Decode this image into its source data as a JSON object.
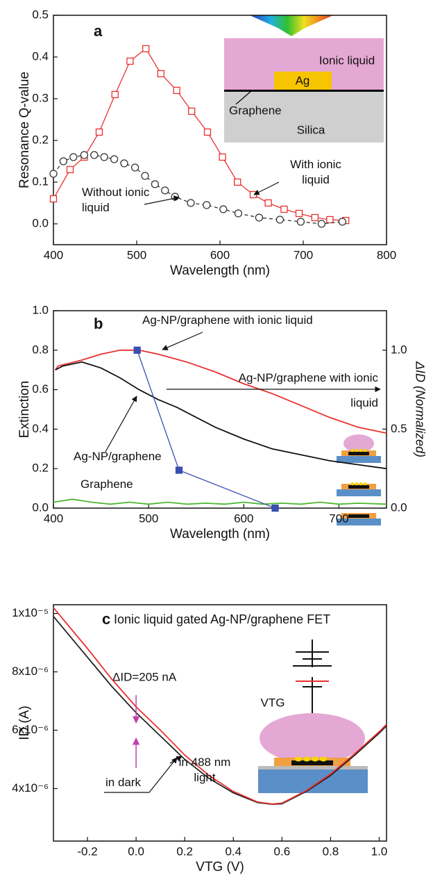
{
  "chart_data": [
    {
      "type": "line",
      "panel_label": "a",
      "xlabel": "Wavelength (nm)",
      "ylabel": "Resonance Q-value",
      "xlim": [
        400,
        800
      ],
      "ylim": [
        -0.05,
        0.5
      ],
      "xticks": [
        400,
        500,
        600,
        700,
        800
      ],
      "yticks": [
        {
          "value": 0,
          "label": "0.0"
        },
        0.1,
        0.2,
        0.3,
        0.4,
        0.5
      ],
      "inset_labels": [
        "Ionic liquid",
        "Ag",
        "Graphene",
        "Silica"
      ],
      "series": [
        {
          "name": "With ionic liquid",
          "color": "#e8312f",
          "marker": "square",
          "linestyle": "solid",
          "x": [
            400,
            420,
            437,
            455,
            474,
            492,
            511,
            529,
            548,
            566,
            585,
            603,
            621,
            640,
            658,
            677,
            695,
            714,
            732,
            751
          ],
          "values": [
            0.06,
            0.13,
            0.16,
            0.22,
            0.31,
            0.39,
            0.42,
            0.36,
            0.32,
            0.27,
            0.22,
            0.16,
            0.1,
            0.07,
            0.05,
            0.035,
            0.025,
            0.015,
            0.01,
            0.008
          ]
        },
        {
          "name": "Without ionic liquid",
          "color": "#333333",
          "marker": "circle",
          "linestyle": "dashed",
          "x": [
            400,
            412,
            424,
            437,
            449,
            461,
            473,
            485,
            498,
            510,
            522,
            534,
            546,
            565,
            584,
            604,
            622,
            647,
            672,
            697,
            722,
            747
          ],
          "values": [
            0.12,
            0.15,
            0.16,
            0.165,
            0.165,
            0.16,
            0.155,
            0.145,
            0.135,
            0.115,
            0.095,
            0.08,
            0.065,
            0.05,
            0.045,
            0.035,
            0.025,
            0.015,
            0.01,
            0.005,
            0.0,
            0.005
          ]
        }
      ]
    },
    {
      "type": "line",
      "panel_label": "b",
      "xlabel": "Wavelength (nm)",
      "ylabel": "Extinction",
      "y2label": "ΔID (Normalized)",
      "xlim": [
        400,
        750
      ],
      "ylim": [
        0,
        1
      ],
      "y2lim": [
        0,
        1.25
      ],
      "xticks": [
        400,
        500,
        600,
        700
      ],
      "yticks": [
        {
          "value": 0,
          "label": "0.0"
        },
        0.2,
        0.4,
        0.6,
        0.8,
        {
          "value": 1,
          "label": "1.0"
        }
      ],
      "y2ticks": [
        {
          "value": 0,
          "label": "0.0"
        },
        0.5,
        {
          "value": 1,
          "label": "1.0"
        }
      ],
      "series": [
        {
          "name": "Ag-NP/graphene with ionic liquid",
          "color": "#e8312f",
          "linestyle": "solid",
          "x": [
            402,
            405,
            430,
            450,
            470,
            490,
            510,
            540,
            570,
            600,
            630,
            660,
            690,
            720,
            750
          ],
          "values": [
            0.7,
            0.72,
            0.75,
            0.78,
            0.8,
            0.8,
            0.78,
            0.74,
            0.69,
            0.63,
            0.58,
            0.52,
            0.46,
            0.41,
            0.38
          ]
        },
        {
          "name": "Ag-NP/graphene",
          "color": "#111111",
          "linestyle": "solid",
          "x": [
            402,
            410,
            430,
            450,
            470,
            490,
            510,
            530,
            550,
            570,
            600,
            630,
            660,
            690,
            720,
            750
          ],
          "values": [
            0.7,
            0.72,
            0.74,
            0.71,
            0.66,
            0.6,
            0.55,
            0.51,
            0.46,
            0.41,
            0.35,
            0.3,
            0.27,
            0.24,
            0.22,
            0.2
          ]
        },
        {
          "name": "Graphene",
          "color": "#4cb82f",
          "linestyle": "solid",
          "x": [
            400,
            420,
            440,
            460,
            480,
            500,
            520,
            540,
            560,
            580,
            600,
            620,
            640,
            660,
            680,
            700,
            720,
            750
          ],
          "values": [
            0.03,
            0.045,
            0.03,
            0.02,
            0.03,
            0.02,
            0.03,
            0.02,
            0.025,
            0.02,
            0.03,
            0.02,
            0.025,
            0.02,
            0.03,
            0.02,
            0.025,
            0.02
          ]
        },
        {
          "name": "Ag-NP/graphene with ionic liquid",
          "color": "#3a4fb0",
          "marker": "square-filled",
          "linestyle": "solid",
          "axis": "y2",
          "x": [
            488,
            532,
            633
          ],
          "values": [
            1.0,
            0.24,
            0.0
          ]
        }
      ]
    },
    {
      "type": "line",
      "panel_label": "c",
      "title": "Ionic liquid gated Ag-NP/graphene FET",
      "xlabel": "VTG (V)",
      "ylabel": "ID (A)",
      "xlim": [
        -0.34,
        1.03
      ],
      "ylim": [
        2.2e-06,
        1.03e-05
      ],
      "xticks": [
        -0.2,
        {
          "value": 0,
          "label": "0.0"
        },
        0.2,
        0.4,
        0.6,
        0.8,
        {
          "value": 1,
          "label": "1.0"
        }
      ],
      "yticks": [
        {
          "value": 4e-06,
          "label": "4x10⁻⁶"
        },
        {
          "value": 6e-06,
          "label": "6x10⁻⁶"
        },
        {
          "value": 8e-06,
          "label": "8x10⁻⁶"
        },
        {
          "value": 1e-05,
          "label": "1x10⁻⁵"
        }
      ],
      "annotations": [
        "ΔID=205 nA"
      ],
      "inset_labels": [
        "VTG"
      ],
      "series": [
        {
          "name": "in dark",
          "color": "#222222",
          "linestyle": "solid",
          "x": [
            -0.34,
            -0.3,
            -0.2,
            -0.1,
            0,
            0.1,
            0.2,
            0.3,
            0.4,
            0.5,
            0.56,
            0.6,
            0.7,
            0.8,
            0.9,
            1.0,
            1.03
          ],
          "values": [
            9.9e-06,
            9.5e-06,
            8.5e-06,
            7.5e-06,
            6.6e-06,
            5.8e-06,
            5e-06,
            4.35e-06,
            3.85e-06,
            3.52e-06,
            3.46e-06,
            3.48e-06,
            3.9e-06,
            4.45e-06,
            5.15e-06,
            5.9e-06,
            6.15e-06
          ]
        },
        {
          "name": "in 488 nm light",
          "color": "#e8312f",
          "linestyle": "solid",
          "x": [
            -0.34,
            -0.3,
            -0.2,
            -0.1,
            0,
            0.1,
            0.2,
            0.3,
            0.4,
            0.5,
            0.56,
            0.6,
            0.7,
            0.8,
            0.9,
            1.0,
            1.03
          ],
          "values": [
            1.02e-05,
            9.8e-06,
            8.8e-06,
            7.75e-06,
            6.8e-06,
            6e-06,
            5.15e-06,
            4.45e-06,
            3.9e-06,
            3.54e-06,
            3.47e-06,
            3.5e-06,
            3.93e-06,
            4.5e-06,
            5.2e-06,
            5.95e-06,
            6.2e-06
          ]
        }
      ]
    }
  ]
}
